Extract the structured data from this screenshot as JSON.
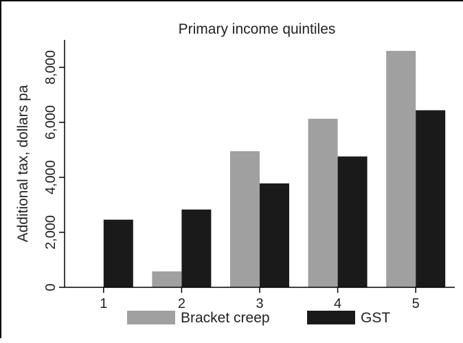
{
  "chart_data": {
    "type": "bar",
    "title": "Primary income quintiles",
    "xlabel": "",
    "ylabel": "Additional tax, dollars pa",
    "categories": [
      "1",
      "2",
      "3",
      "4",
      "5"
    ],
    "series": [
      {
        "name": "Bracket creep",
        "color": "#a0a0a0",
        "values": [
          0,
          580,
          4950,
          6130,
          8600
        ]
      },
      {
        "name": "GST",
        "color": "#1a1a1a",
        "values": [
          2460,
          2830,
          3780,
          4760,
          6440
        ]
      }
    ],
    "ylim": [
      0,
      9000
    ],
    "yticks": [
      0,
      2000,
      4000,
      6000,
      8000
    ],
    "ytick_labels": [
      "0",
      "2,000",
      "4,000",
      "6,000",
      "8,000"
    ],
    "grid": false,
    "legend_position": "bottom"
  }
}
